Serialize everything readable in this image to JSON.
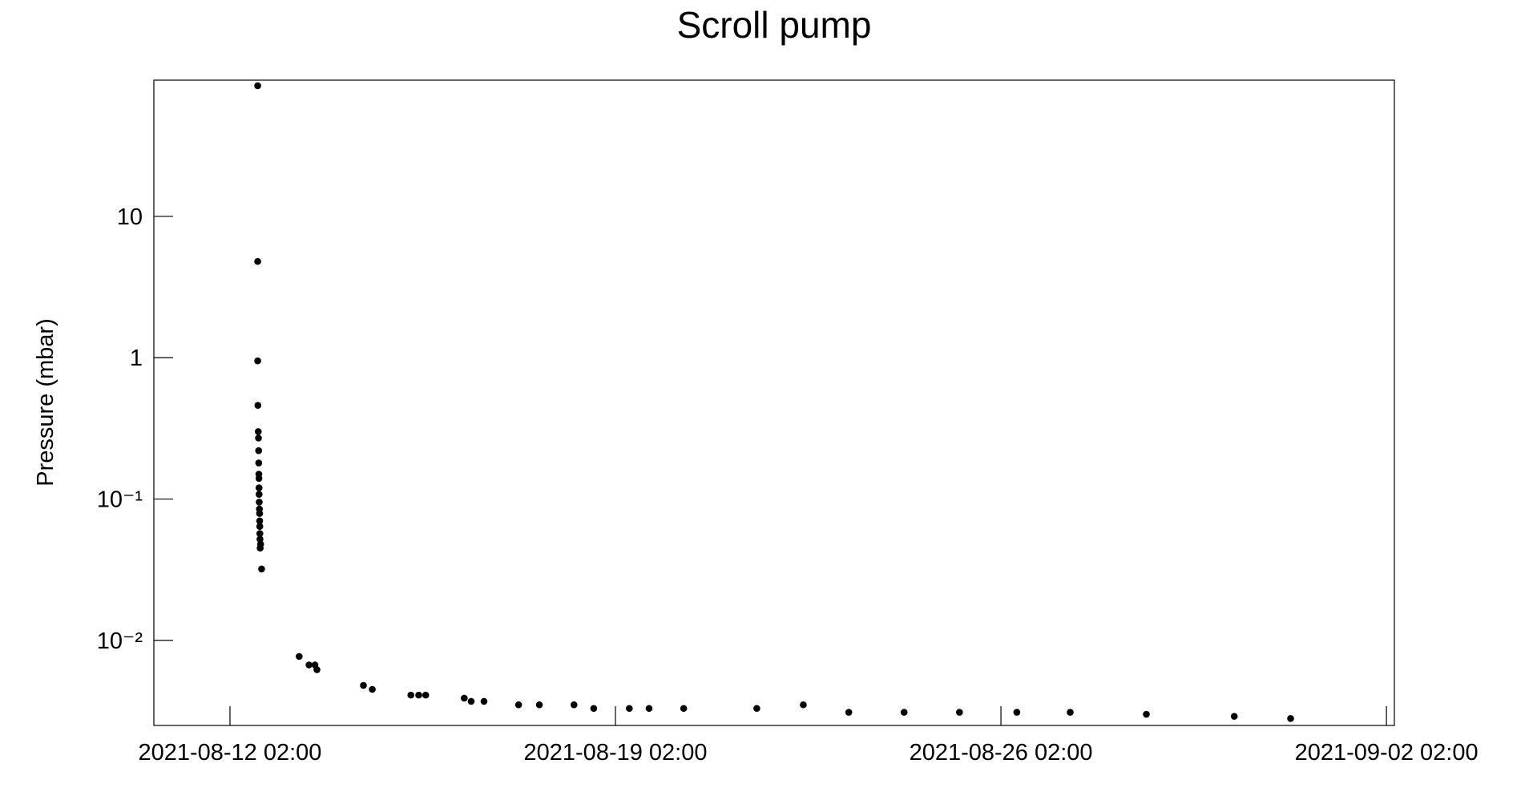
{
  "chart_data": {
    "type": "scatter",
    "title": "Scroll pump",
    "y_label": "Pressure (mbar)",
    "log_y": true,
    "color": "#000000",
    "x": [
      "2021-08-12 14:05",
      "2021-08-12 14:05",
      "2021-08-12 14:05",
      "2021-08-12 14:10",
      "2021-08-12 14:20",
      "2021-08-12 14:25",
      "2021-08-12 14:30",
      "2021-08-12 14:32",
      "2021-08-12 14:35",
      "2021-08-12 14:38",
      "2021-08-12 14:40",
      "2021-08-12 14:42",
      "2021-08-12 14:45",
      "2021-08-12 14:50",
      "2021-08-12 14:55",
      "2021-08-12 14:57",
      "2021-08-12 15:00",
      "2021-08-12 15:02",
      "2021-08-12 15:05",
      "2021-08-12 15:21",
      "2021-08-12 15:10",
      "2021-08-12 15:47",
      "2021-08-13 08:10",
      "2021-08-13 12:28",
      "2021-08-13 15:03",
      "2021-08-13 15:54",
      "2021-08-14 12:10",
      "2021-08-14 16:02",
      "2021-08-15 08:50",
      "2021-08-15 12:16",
      "2021-08-15 15:18",
      "2021-08-16 08:06",
      "2021-08-16 11:07",
      "2021-08-16 16:43",
      "2021-08-17 07:47",
      "2021-08-17 16:50",
      "2021-08-18 07:56",
      "2021-08-18 16:32",
      "2021-08-19 08:03",
      "2021-08-19 16:39",
      "2021-08-20 07:44",
      "2021-08-21 15:36",
      "2021-08-22 11:52",
      "2021-08-23 07:41",
      "2021-08-24 07:48",
      "2021-08-25 07:56",
      "2021-08-26 08:55",
      "2021-08-27 08:11",
      "2021-08-28 17:22",
      "2021-08-30 07:41",
      "2021-08-31 08:14"
    ],
    "values": [
      84,
      4.8,
      0.95,
      0.46,
      0.3,
      0.27,
      0.22,
      0.18,
      0.15,
      0.14,
      0.12,
      0.108,
      0.095,
      0.085,
      0.079,
      0.07,
      0.064,
      0.057,
      0.052,
      0.048,
      0.045,
      0.032,
      0.0077,
      0.0067,
      0.0067,
      0.0062,
      0.0048,
      0.0045,
      0.0041,
      0.0041,
      0.0041,
      0.0039,
      0.0037,
      0.0037,
      0.0035,
      0.0035,
      0.0035,
      0.0033,
      0.0033,
      0.0033,
      0.0033,
      0.0033,
      0.0035,
      0.0031,
      0.0031,
      0.0031,
      0.0031,
      0.0031,
      0.003,
      0.0029,
      0.0028
    ],
    "xlim": [
      "2021-08-10 16:50",
      "2021-09-02 05:27"
    ],
    "xticks": [
      "2021-08-12 02:00",
      "2021-08-19 02:00",
      "2021-08-26 02:00",
      "2021-09-02 02:00"
    ],
    "ylim": [
      0.0025,
      92
    ],
    "yticks": [
      {
        "value": 0.01,
        "label": "10⁻²"
      },
      {
        "value": 0.1,
        "label": "10⁻¹"
      },
      1,
      10
    ]
  }
}
